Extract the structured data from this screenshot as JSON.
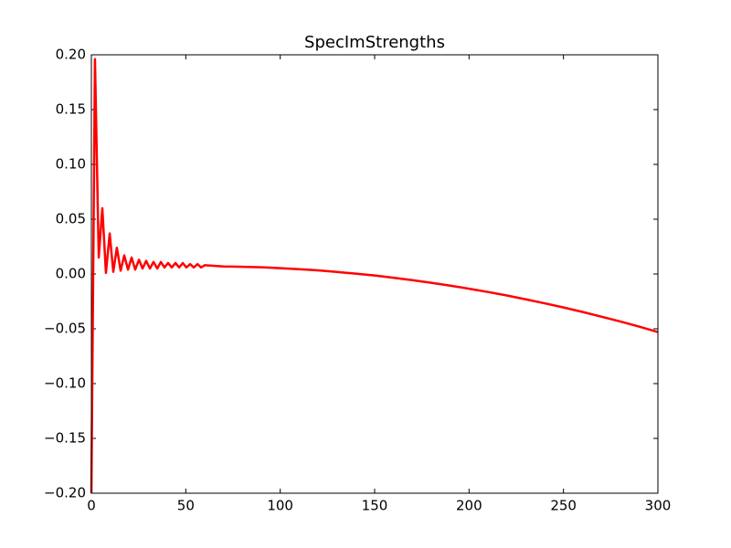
{
  "chart_data": {
    "type": "line",
    "title": "SpecImStrengths",
    "color": "#ff0000",
    "x": [
      0,
      1.9,
      3.9,
      5.8,
      7.7,
      9.7,
      11.6,
      13.5,
      15.5,
      17.4,
      19.4,
      21.3,
      23.2,
      25.2,
      27.1,
      29,
      31,
      32.9,
      34.9,
      36.8,
      38.7,
      40.6,
      42.6,
      44.5,
      46.5,
      48.4,
      50.3,
      52.3,
      54.2,
      56.2,
      58.1,
      60,
      70,
      80,
      90,
      100,
      110,
      120,
      130,
      140,
      150,
      160,
      170,
      180,
      190,
      200,
      210,
      220,
      230,
      240,
      250,
      260,
      270,
      280,
      290,
      300
    ],
    "values": [
      -0.2,
      0.196,
      0.015,
      0.06,
      0.001,
      0.037,
      0.002,
      0.024,
      0.003,
      0.017,
      0.004,
      0.015,
      0.004,
      0.013,
      0.005,
      0.012,
      0.005,
      0.011,
      0.005,
      0.011,
      0.006,
      0.01,
      0.006,
      0.01,
      0.006,
      0.01,
      0.006,
      0.009,
      0.006,
      0.009,
      0.006,
      0.008,
      0.0069,
      0.0066,
      0.0061,
      0.0053,
      0.0044,
      0.0033,
      0.0019,
      0.0003,
      -0.0014,
      -0.0034,
      -0.0056,
      -0.008,
      -0.0106,
      -0.0134,
      -0.0164,
      -0.0196,
      -0.0231,
      -0.0267,
      -0.0305,
      -0.0346,
      -0.0389,
      -0.0433,
      -0.048,
      -0.053
    ],
    "xlim": [
      0,
      300
    ],
    "xticks": [
      0,
      50,
      100,
      150,
      200,
      250,
      300
    ],
    "ylim": [
      -0.2,
      0.2
    ],
    "yticks": [
      {
        "value": -0.2,
        "label": "−0.20"
      },
      {
        "value": -0.15,
        "label": "−0.15"
      },
      {
        "value": -0.1,
        "label": "−0.10"
      },
      {
        "value": -0.05,
        "label": "−0.05"
      },
      {
        "value": 0,
        "label": "0.00"
      },
      {
        "value": 0.05,
        "label": "0.05"
      },
      {
        "value": 0.1,
        "label": "0.10"
      },
      {
        "value": 0.15,
        "label": "0.15"
      },
      {
        "value": 0.2,
        "label": "0.20"
      }
    ],
    "grid": false
  }
}
